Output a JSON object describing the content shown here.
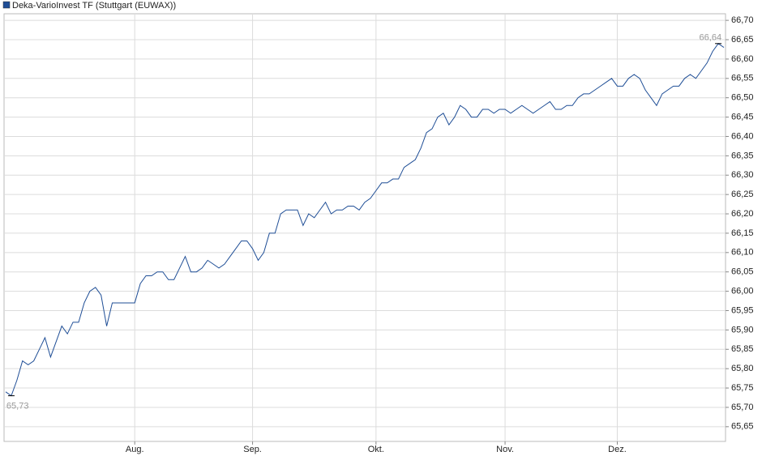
{
  "chart_data": {
    "type": "line",
    "series": [
      {
        "name": "Deka-VarioInvest TF (Stuttgart (EUWAX))",
        "color": "#1f4e96",
        "values": [
          65.74,
          65.73,
          65.77,
          65.82,
          65.81,
          65.82,
          65.85,
          65.88,
          65.83,
          65.87,
          65.91,
          65.89,
          65.92,
          65.92,
          65.97,
          66.0,
          66.01,
          65.99,
          65.91,
          65.97,
          65.97,
          65.97,
          65.97,
          65.97,
          66.02,
          66.04,
          66.04,
          66.05,
          66.05,
          66.03,
          66.03,
          66.06,
          66.09,
          66.05,
          66.05,
          66.06,
          66.08,
          66.07,
          66.06,
          66.07,
          66.09,
          66.11,
          66.13,
          66.13,
          66.11,
          66.08,
          66.1,
          66.15,
          66.15,
          66.2,
          66.21,
          66.21,
          66.21,
          66.17,
          66.2,
          66.19,
          66.21,
          66.23,
          66.2,
          66.21,
          66.21,
          66.22,
          66.22,
          66.21,
          66.23,
          66.24,
          66.26,
          66.28,
          66.28,
          66.29,
          66.29,
          66.32,
          66.33,
          66.34,
          66.37,
          66.41,
          66.42,
          66.45,
          66.46,
          66.43,
          66.45,
          66.48,
          66.47,
          66.45,
          66.45,
          66.47,
          66.47,
          66.46,
          66.47,
          66.47,
          66.46,
          66.47,
          66.48,
          66.47,
          66.46,
          66.47,
          66.48,
          66.49,
          66.47,
          66.47,
          66.48,
          66.48,
          66.5,
          66.51,
          66.51,
          66.52,
          66.53,
          66.54,
          66.55,
          66.53,
          66.53,
          66.55,
          66.56,
          66.55,
          66.52,
          66.5,
          66.48,
          66.51,
          66.52,
          66.53,
          66.53,
          66.55,
          66.56,
          66.55,
          66.57,
          66.59,
          66.62,
          66.64,
          66.63
        ]
      }
    ],
    "categories": [
      null,
      null,
      null,
      null,
      null,
      null,
      null,
      null,
      null,
      null,
      null,
      null,
      null,
      null,
      null,
      null,
      null,
      null,
      null,
      null,
      null,
      null,
      null,
      "Aug.",
      null,
      null,
      null,
      null,
      null,
      null,
      null,
      null,
      null,
      null,
      null,
      null,
      null,
      null,
      null,
      null,
      null,
      null,
      null,
      null,
      "Sep.",
      null,
      null,
      null,
      null,
      null,
      null,
      null,
      null,
      null,
      null,
      null,
      null,
      null,
      null,
      null,
      null,
      null,
      null,
      null,
      null,
      null,
      "Okt.",
      null,
      null,
      null,
      null,
      null,
      null,
      null,
      null,
      null,
      null,
      null,
      null,
      null,
      null,
      null,
      null,
      null,
      null,
      null,
      null,
      null,
      null,
      "Nov.",
      null,
      null,
      null,
      null,
      null,
      null,
      null,
      null,
      null,
      null,
      null,
      null,
      null,
      null,
      null,
      null,
      null,
      null,
      null,
      "Dez.",
      null,
      null,
      null,
      null,
      null,
      null,
      null,
      null,
      null,
      null,
      null,
      null,
      null,
      null,
      null,
      null,
      null,
      null,
      null
    ],
    "min_label": "65,73",
    "max_label": "66,64",
    "ylim": [
      65.612,
      66.717
    ],
    "yticks": [
      {
        "value": 65.65,
        "label": "65,65"
      },
      {
        "value": 65.7,
        "label": "65,70"
      },
      {
        "value": 65.75,
        "label": "65,75"
      },
      {
        "value": 65.8,
        "label": "65,80"
      },
      {
        "value": 65.85,
        "label": "65,85"
      },
      {
        "value": 65.9,
        "label": "65,90"
      },
      {
        "value": 65.95,
        "label": "65,95"
      },
      {
        "value": 66.0,
        "label": "66,00"
      },
      {
        "value": 66.05,
        "label": "66,05"
      },
      {
        "value": 66.1,
        "label": "66,10"
      },
      {
        "value": 66.15,
        "label": "66,15"
      },
      {
        "value": 66.2,
        "label": "66,20"
      },
      {
        "value": 66.25,
        "label": "66,25"
      },
      {
        "value": 66.3,
        "label": "66,30"
      },
      {
        "value": 66.35,
        "label": "66,35"
      },
      {
        "value": 66.4,
        "label": "66,40"
      },
      {
        "value": 66.45,
        "label": "66,45"
      },
      {
        "value": 66.5,
        "label": "66,50"
      },
      {
        "value": 66.55,
        "label": "66,55"
      },
      {
        "value": 66.6,
        "label": "66,60"
      },
      {
        "value": 66.65,
        "label": "66,65"
      },
      {
        "value": 66.7,
        "label": "66,70"
      }
    ],
    "grid": true
  }
}
